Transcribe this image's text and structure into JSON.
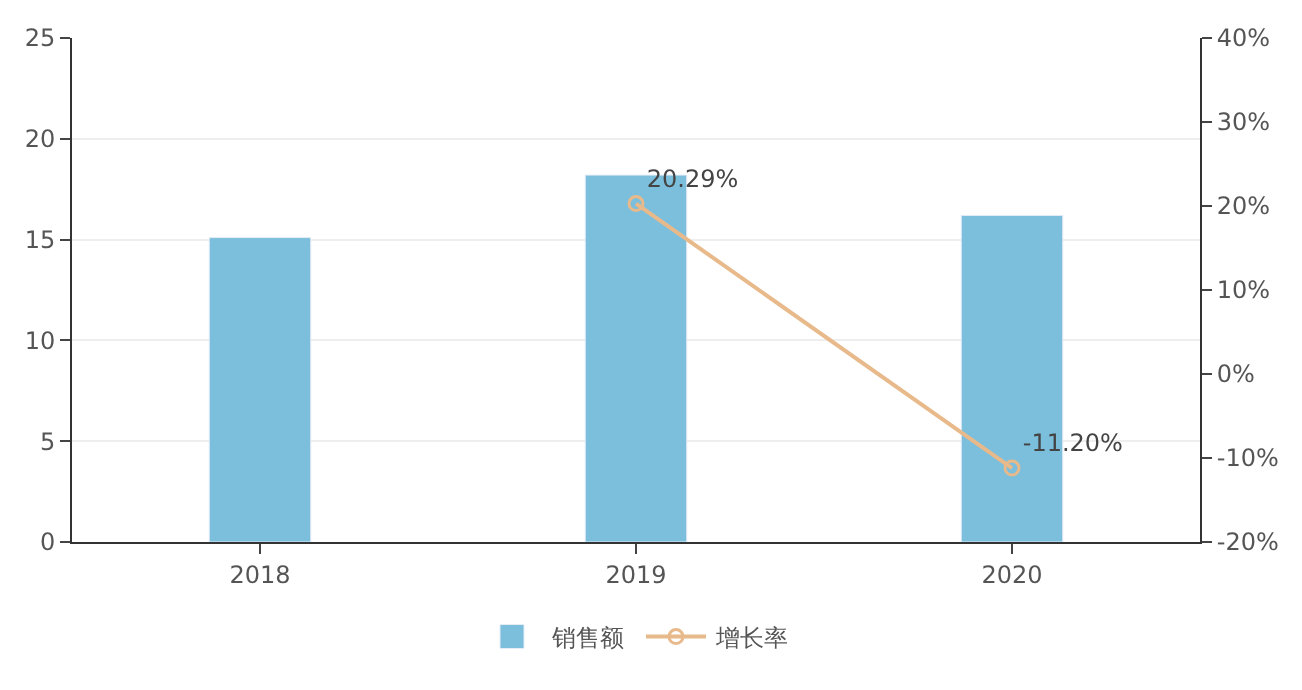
{
  "chart_data": {
    "type": "bar",
    "categories": [
      "2018",
      "2019",
      "2020"
    ],
    "series": [
      {
        "name": "销售额",
        "color": "#7bbfdc",
        "values": [
          15.1,
          18.2,
          16.2
        ]
      },
      {
        "name": "增长率",
        "type": "line",
        "axis": "y2",
        "color": "#e8b98a",
        "marker": "circle",
        "values": [
          null,
          20.29,
          -11.2
        ],
        "value_labels": [
          null,
          "20.29%",
          "-11.20%"
        ]
      }
    ],
    "ylim": [
      0,
      25
    ],
    "yticks": [
      0,
      5,
      10,
      15,
      20,
      25
    ],
    "y2lim": [
      -20,
      40
    ],
    "y2ticks": [
      {
        "value": -20,
        "label": "-20%"
      },
      {
        "value": -10,
        "label": "-10%"
      },
      {
        "value": 0,
        "label": "0%"
      },
      {
        "value": 10,
        "label": "10%"
      },
      {
        "value": 20,
        "label": "20%"
      },
      {
        "value": 30,
        "label": "30%"
      },
      {
        "value": 40,
        "label": "40%"
      }
    ],
    "grid": "y",
    "legend": "bottom"
  }
}
